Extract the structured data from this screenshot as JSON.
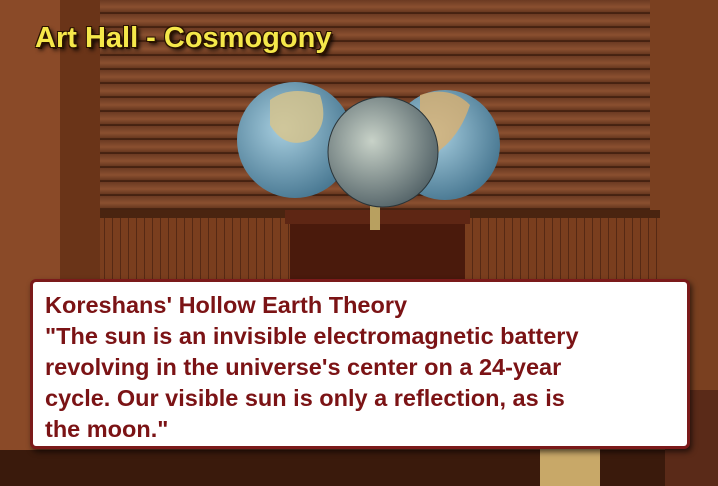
{
  "title": "Art Hall - Cosmogony",
  "caption": {
    "heading": "Koreshans' Hollow Earth Theory",
    "quote_lines": [
      "\"The sun is an invisible electromagnetic battery",
      "revolving in the universe's center on a 24-year",
      "cycle. Our visible sun is only a reflection, as is",
      "the moon.\""
    ]
  }
}
